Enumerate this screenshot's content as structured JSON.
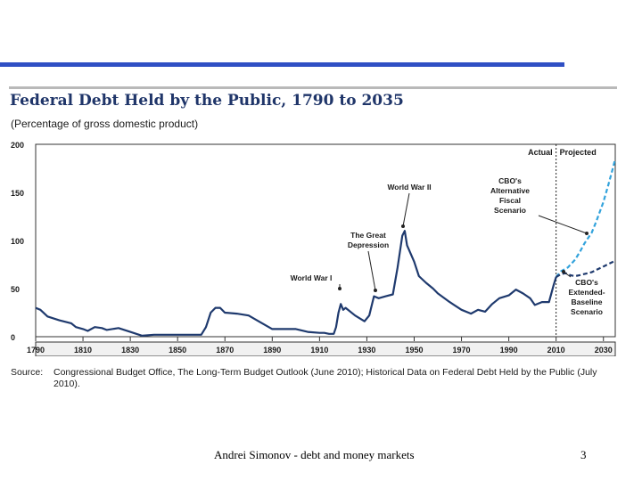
{
  "slide": {
    "footer_text": "Andrei Simonov - debt and money markets",
    "page_number": "3",
    "accent_color": "#2f4fc4"
  },
  "chart_data": {
    "type": "line",
    "title": "Federal Debt Held by the Public, 1790 to 2035",
    "subtitle": "(Percentage of gross domestic product)",
    "xlabel": "",
    "ylabel": "",
    "xlim": [
      1790,
      2035
    ],
    "ylim": [
      0,
      200
    ],
    "yticks": [
      0,
      50,
      100,
      150,
      200
    ],
    "xticks": [
      1790,
      1810,
      1830,
      1850,
      1870,
      1890,
      1910,
      1930,
      1950,
      1970,
      1990,
      2010,
      2030
    ],
    "region_labels": {
      "actual": "Actual",
      "projected": "Projected",
      "divider_year": 2010
    },
    "series": [
      {
        "name": "Actual",
        "style": "solid",
        "color": "#1f3a6e",
        "points": [
          [
            1790,
            30
          ],
          [
            1792,
            28
          ],
          [
            1795,
            21
          ],
          [
            1800,
            17
          ],
          [
            1805,
            14
          ],
          [
            1807,
            10
          ],
          [
            1810,
            8
          ],
          [
            1812,
            6
          ],
          [
            1815,
            10
          ],
          [
            1818,
            9
          ],
          [
            1820,
            7
          ],
          [
            1825,
            9
          ],
          [
            1830,
            5
          ],
          [
            1835,
            1
          ],
          [
            1840,
            2
          ],
          [
            1845,
            2
          ],
          [
            1850,
            2
          ],
          [
            1855,
            2
          ],
          [
            1857,
            2
          ],
          [
            1860,
            2
          ],
          [
            1862,
            10
          ],
          [
            1864,
            25
          ],
          [
            1866,
            30
          ],
          [
            1868,
            30
          ],
          [
            1870,
            25
          ],
          [
            1875,
            24
          ],
          [
            1880,
            22
          ],
          [
            1885,
            15
          ],
          [
            1890,
            8
          ],
          [
            1895,
            8
          ],
          [
            1900,
            8
          ],
          [
            1905,
            5
          ],
          [
            1910,
            4
          ],
          [
            1912,
            4
          ],
          [
            1914,
            3
          ],
          [
            1916,
            3
          ],
          [
            1917,
            10
          ],
          [
            1918,
            25
          ],
          [
            1919,
            34
          ],
          [
            1920,
            28
          ],
          [
            1921,
            30
          ],
          [
            1925,
            22
          ],
          [
            1929,
            16
          ],
          [
            1931,
            22
          ],
          [
            1933,
            42
          ],
          [
            1935,
            40
          ],
          [
            1938,
            42
          ],
          [
            1941,
            44
          ],
          [
            1943,
            72
          ],
          [
            1945,
            105
          ],
          [
            1946,
            110
          ],
          [
            1947,
            95
          ],
          [
            1950,
            78
          ],
          [
            1952,
            63
          ],
          [
            1955,
            56
          ],
          [
            1958,
            50
          ],
          [
            1960,
            45
          ],
          [
            1965,
            36
          ],
          [
            1970,
            28
          ],
          [
            1974,
            24
          ],
          [
            1977,
            28
          ],
          [
            1980,
            26
          ],
          [
            1983,
            34
          ],
          [
            1986,
            40
          ],
          [
            1990,
            43
          ],
          [
            1993,
            49
          ],
          [
            1996,
            45
          ],
          [
            1999,
            40
          ],
          [
            2001,
            33
          ],
          [
            2004,
            36
          ],
          [
            2007,
            36
          ],
          [
            2009,
            54
          ],
          [
            2010,
            62
          ]
        ]
      },
      {
        "name": "CBO's Alternative Fiscal Scenario",
        "style": "dashed",
        "color": "#33a3dc",
        "points": [
          [
            2010,
            62
          ],
          [
            2012,
            68
          ],
          [
            2015,
            72
          ],
          [
            2018,
            80
          ],
          [
            2020,
            88
          ],
          [
            2022,
            97
          ],
          [
            2025,
            108
          ],
          [
            2027,
            120
          ],
          [
            2030,
            140
          ],
          [
            2032,
            157
          ],
          [
            2034,
            175
          ],
          [
            2035,
            185
          ]
        ]
      },
      {
        "name": "CBO's Extended-Baseline Scenario",
        "style": "dashed",
        "color": "#1f3a6e",
        "points": [
          [
            2010,
            62
          ],
          [
            2012,
            65
          ],
          [
            2014,
            66
          ],
          [
            2016,
            64
          ],
          [
            2018,
            63
          ],
          [
            2020,
            64
          ],
          [
            2025,
            67
          ],
          [
            2030,
            73
          ],
          [
            2035,
            79
          ]
        ]
      }
    ],
    "annotations": [
      {
        "text": "World War I",
        "x": 1918,
        "y": 34
      },
      {
        "text": "The Great Depression",
        "x": 1934,
        "y": 42
      },
      {
        "text": "World War II",
        "x": 1946,
        "y": 110
      },
      {
        "text": "CBO's Alternative Fiscal Scenario",
        "x": 2024,
        "y": 106
      },
      {
        "text": "CBO's Extended-Baseline Scenario",
        "x": 2013,
        "y": 65
      }
    ]
  },
  "source": {
    "label": "Source:",
    "text": "Congressional Budget Office, The Long-Term Budget Outlook (June 2010); Historical Data on Federal Debt Held by the Public (July 2010)."
  }
}
